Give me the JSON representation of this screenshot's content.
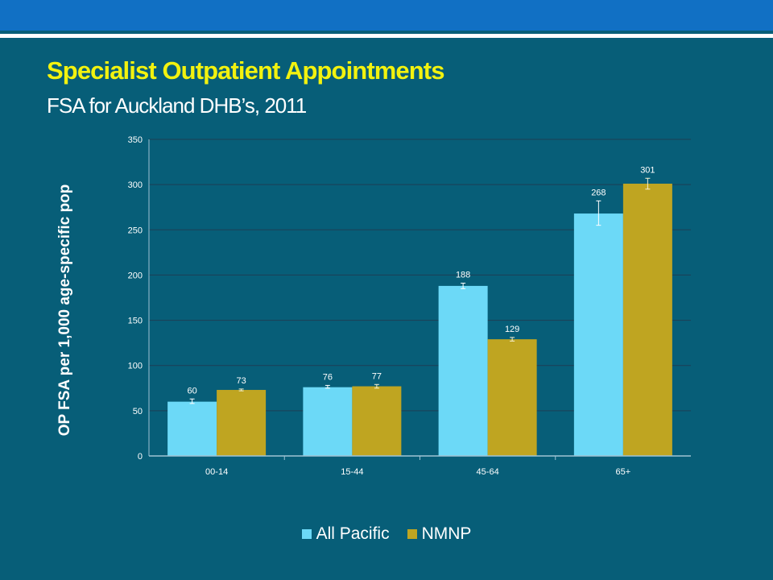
{
  "slide": {
    "title": "Specialist Outpatient Appointments",
    "subtitle": "FSA for Auckland DHB’s, 2011"
  },
  "colors": {
    "background": "#075E78",
    "top_band": "#1170C4",
    "title": "#F2F20F",
    "all_pacific": "#6CD9F7",
    "nmnp": "#BFA521",
    "gridline": "#1E3F55",
    "axis": "#9FC3D4"
  },
  "chart_data": {
    "type": "bar",
    "title": "",
    "xlabel": "",
    "ylabel": "OP FSA per 1,000 age-specific pop",
    "ylim": [
      0,
      350
    ],
    "yticks": [
      0,
      50,
      100,
      150,
      200,
      250,
      300,
      350
    ],
    "grid": true,
    "legend_position": "bottom",
    "categories": [
      "00-14",
      "15-44",
      "45-64",
      "65+"
    ],
    "series": [
      {
        "name": "All Pacific",
        "values": [
          60,
          76,
          188,
          268
        ],
        "data_labels": [
          "60",
          "76",
          "188",
          "268"
        ],
        "error_low": [
          58,
          75,
          185,
          255
        ],
        "error_high": [
          63,
          78,
          191,
          282
        ]
      },
      {
        "name": "NMNP",
        "values": [
          73,
          77,
          129,
          301
        ],
        "data_labels": [
          "73",
          "77",
          "129",
          "301"
        ],
        "error_low": [
          72,
          75,
          127,
          295
        ],
        "error_high": [
          74,
          79,
          131,
          307
        ]
      }
    ]
  }
}
